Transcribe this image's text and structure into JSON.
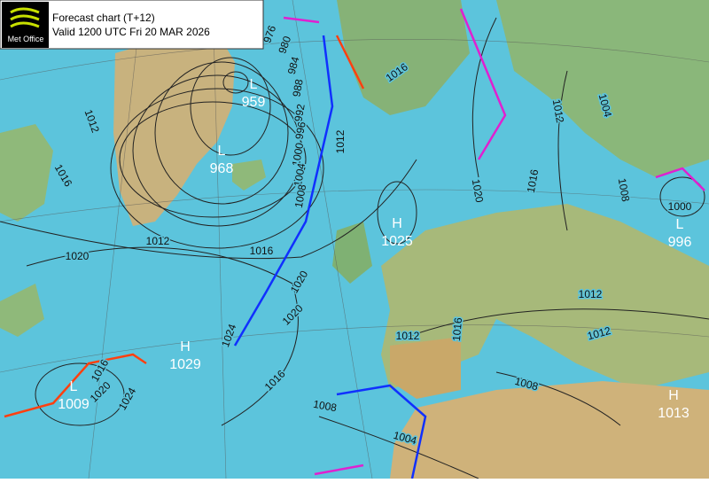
{
  "header": {
    "logo": "Met Office",
    "title": "Forecast chart (T+12)",
    "valid": "Valid 1200 UTC Fri 20 MAR 2026"
  },
  "centers": [
    {
      "kind": "L",
      "pressure": "959"
    },
    {
      "kind": "L",
      "pressure": "968"
    },
    {
      "kind": "H",
      "pressure": "1025"
    },
    {
      "kind": "L",
      "pressure": "996"
    },
    {
      "kind": "H",
      "pressure": "1029"
    },
    {
      "kind": "L",
      "pressure": "1009"
    },
    {
      "kind": "H",
      "pressure": "1013"
    }
  ],
  "isobar_labels": [
    "976",
    "980",
    "984",
    "988",
    "992",
    "996",
    "1000",
    "1004",
    "1008",
    "1012",
    "1016",
    "1016",
    "1012",
    "1020",
    "1020",
    "1020",
    "1024",
    "1016",
    "1020",
    "1024",
    "1016",
    "1012",
    "1016",
    "1012",
    "1012",
    "1008",
    "1008",
    "1004",
    "1012",
    "1004",
    "1016",
    "1020",
    "1008",
    "1000",
    "1012",
    "1016"
  ]
}
